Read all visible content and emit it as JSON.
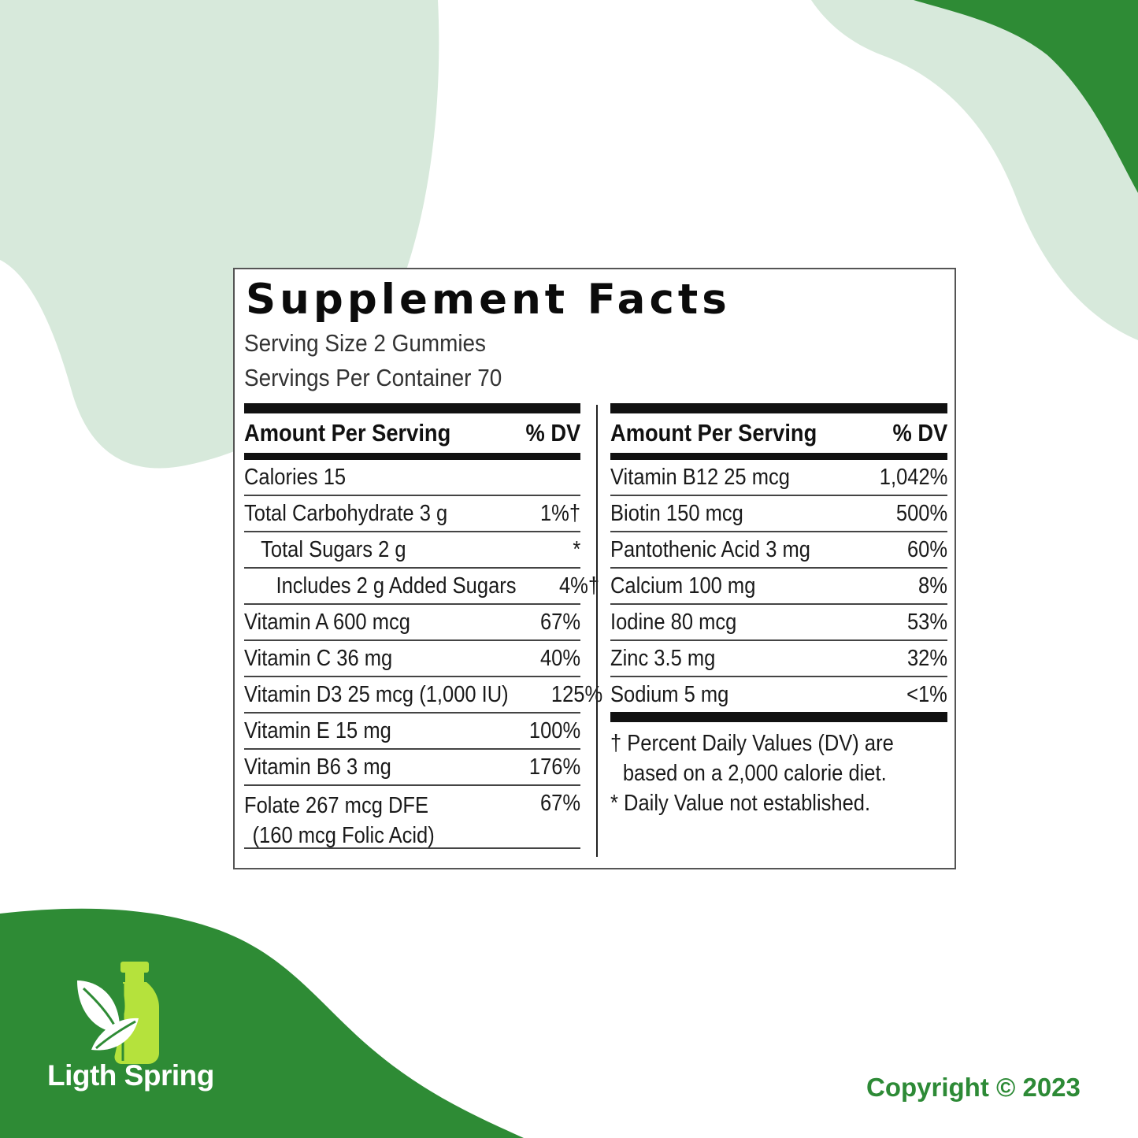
{
  "colors": {
    "dark_green": "#2e8b35",
    "light_green": "#d7e9db",
    "lime": "#b5e23c"
  },
  "facts": {
    "title": "Supplement Facts",
    "serving_size": "Serving Size 2 Gummies",
    "servings_per_container": "Servings Per Container 70",
    "header_amount": "Amount Per Serving",
    "header_dv": "% DV",
    "left_rows": [
      {
        "name": "Calories 15",
        "dv": ""
      },
      {
        "name": "Total Carbohydrate 3 g",
        "dv": "1%†"
      },
      {
        "name": "Total Sugars 2 g",
        "dv": "*"
      },
      {
        "name": "Includes 2 g Added Sugars",
        "dv": "4%†"
      },
      {
        "name": "Vitamin A 600 mcg",
        "dv": "67%"
      },
      {
        "name": "Vitamin C 36 mg",
        "dv": "40%"
      },
      {
        "name": "Vitamin D3 25 mcg (1,000 IU)",
        "dv": "125%"
      },
      {
        "name": "Vitamin E 15 mg",
        "dv": "100%"
      },
      {
        "name": "Vitamin B6 3 mg",
        "dv": "176%"
      },
      {
        "name": "Folate 267 mcg DFE",
        "name2": "(160 mcg Folic Acid)",
        "dv": "67%"
      }
    ],
    "right_rows": [
      {
        "name": "Vitamin B12 25 mcg",
        "dv": "1,042%"
      },
      {
        "name": "Biotin 150 mcg",
        "dv": "500%"
      },
      {
        "name": "Pantothenic Acid 3 mg",
        "dv": "60%"
      },
      {
        "name": "Calcium 100 mg",
        "dv": "8%"
      },
      {
        "name": "Iodine 80 mcg",
        "dv": "53%"
      },
      {
        "name": "Zinc 3.5 mg",
        "dv": "32%"
      },
      {
        "name": "Sodium 5 mg",
        "dv": "<1%"
      }
    ],
    "footnote_1a": "† Percent Daily Values (DV) are",
    "footnote_1b": "based on a 2,000 calorie diet.",
    "footnote_2": "* Daily Value not established."
  },
  "brand": {
    "name": "Ligth Spring",
    "logo_icon": "leaf-bottle-icon"
  },
  "copyright": "Copyright © 2023"
}
